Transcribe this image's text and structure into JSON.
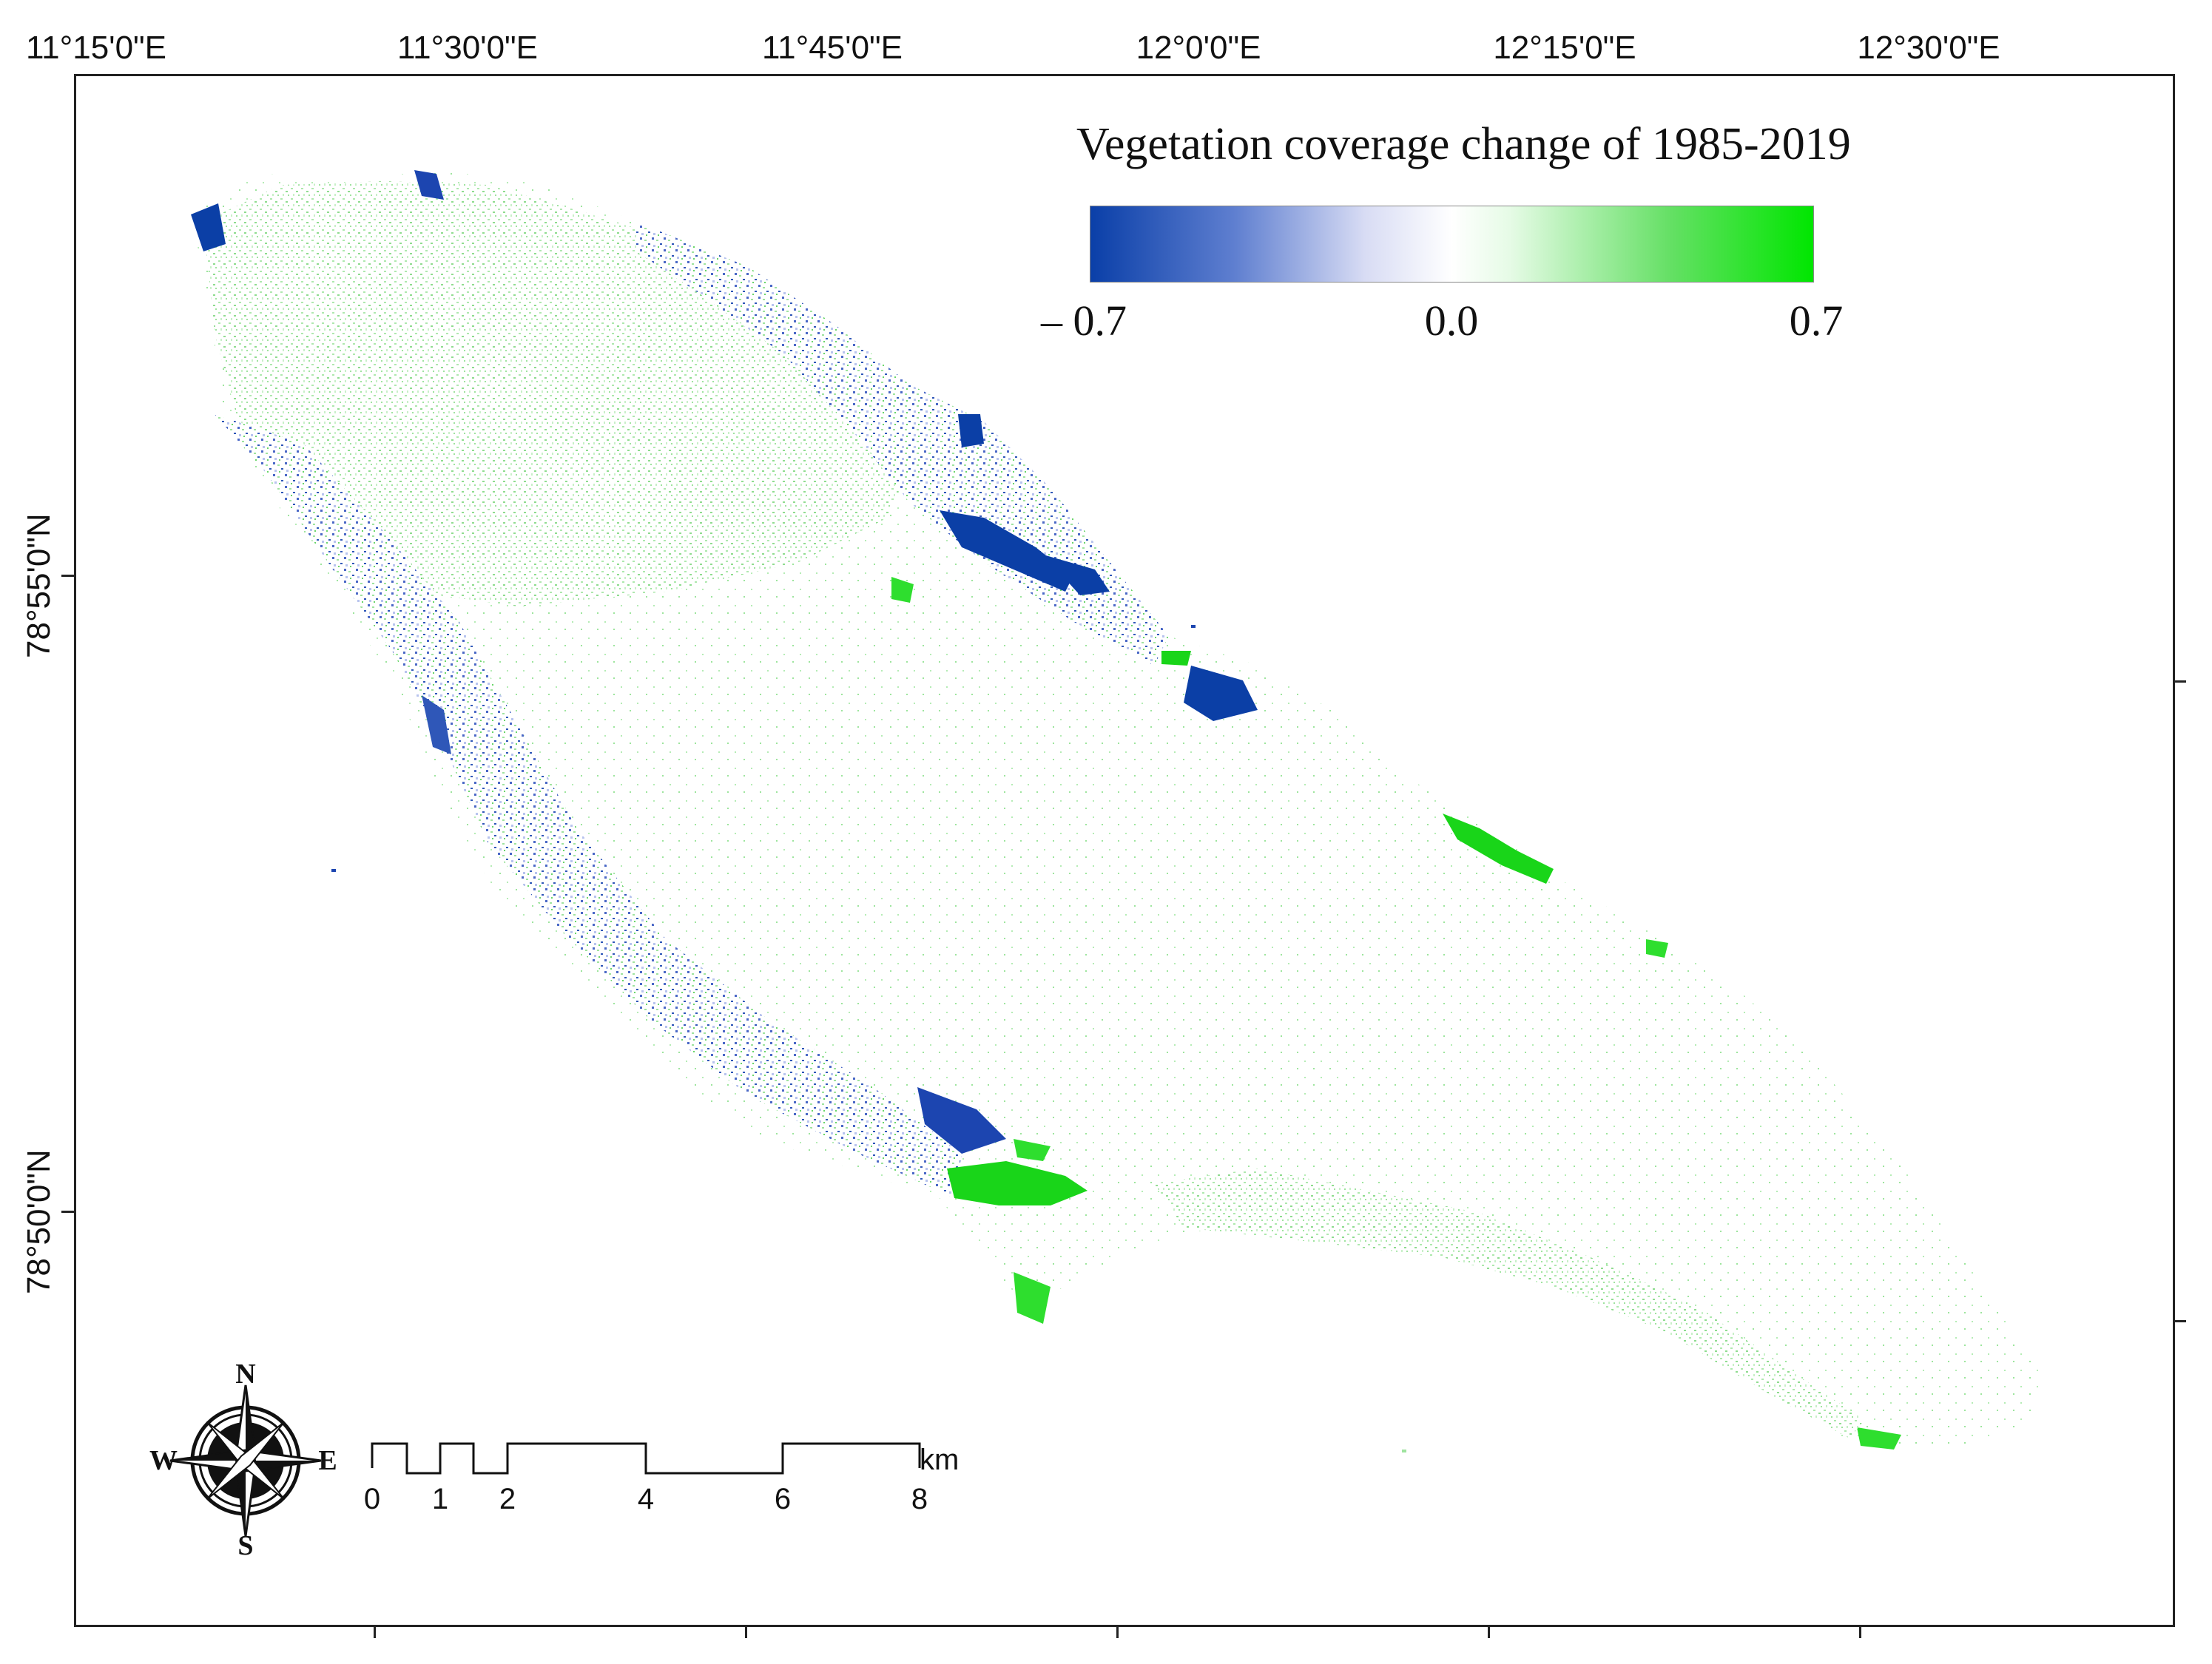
{
  "map": {
    "legend": {
      "title": "Vegetation coverage change of 1985-2019",
      "min_label": "– 0.7",
      "mid_label": "0.0",
      "max_label": "0.7",
      "min_color": "#0a3fa8",
      "mid_color": "#ffffff",
      "max_color": "#00e600"
    },
    "longitude_labels": [
      "11°15'0\"E",
      "11°30'0\"E",
      "11°45'0\"E",
      "12°0'0\"E",
      "12°15'0\"E",
      "12°30'0\"E"
    ],
    "latitude_labels": [
      "78°55'0\"N",
      "78°50'0\"N"
    ],
    "scale_bar": {
      "labels": [
        "0",
        "1",
        "2",
        "4",
        "6",
        "8"
      ],
      "unit": "km"
    },
    "compass": {
      "n": "N",
      "s": "S",
      "e": "E",
      "w": "W"
    },
    "colors": {
      "decrease": "#1c45b0",
      "increase": "#22dd22",
      "light_increase": "#b8efb8",
      "light_decrease": "#b9c4ea"
    }
  }
}
